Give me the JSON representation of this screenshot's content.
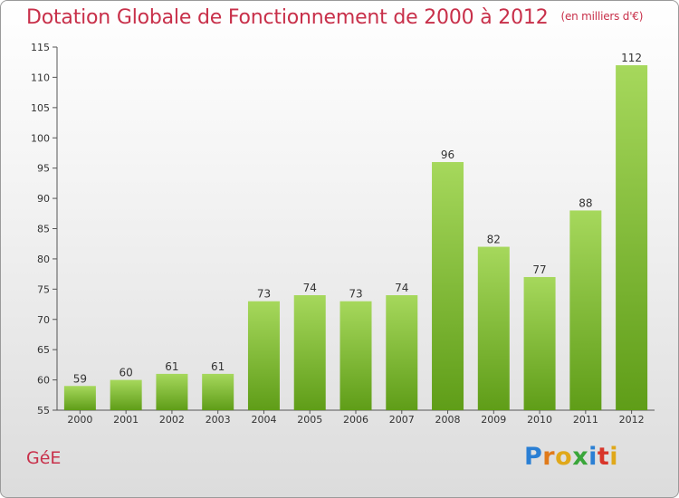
{
  "title": "Dotation Globale de Fonctionnement de 2000 à 2012",
  "unit": "(en milliers d'€)",
  "commune": "GéE",
  "logo": {
    "letters": [
      "P",
      "r",
      "o",
      "x",
      "i",
      "t",
      "i"
    ],
    "colors": [
      "#2a7fd4",
      "#e07a1a",
      "#e0a81a",
      "#3aa63a",
      "#2a7fd4",
      "#d8352a",
      "#e0a81a"
    ]
  },
  "colors": {
    "bar_light": "#a6d85c",
    "bar_dark": "#5f9d18",
    "title": "#c8304a"
  },
  "chart_data": {
    "type": "bar",
    "categories": [
      "2000",
      "2001",
      "2002",
      "2003",
      "2004",
      "2005",
      "2006",
      "2007",
      "2008",
      "2009",
      "2010",
      "2011",
      "2012"
    ],
    "values": [
      59,
      60,
      61,
      61,
      73,
      74,
      73,
      74,
      96,
      82,
      77,
      88,
      112
    ],
    "ylim": [
      55,
      115
    ],
    "yticks": [
      55,
      60,
      65,
      70,
      75,
      80,
      85,
      90,
      95,
      100,
      105,
      110,
      115
    ],
    "grid": false
  }
}
